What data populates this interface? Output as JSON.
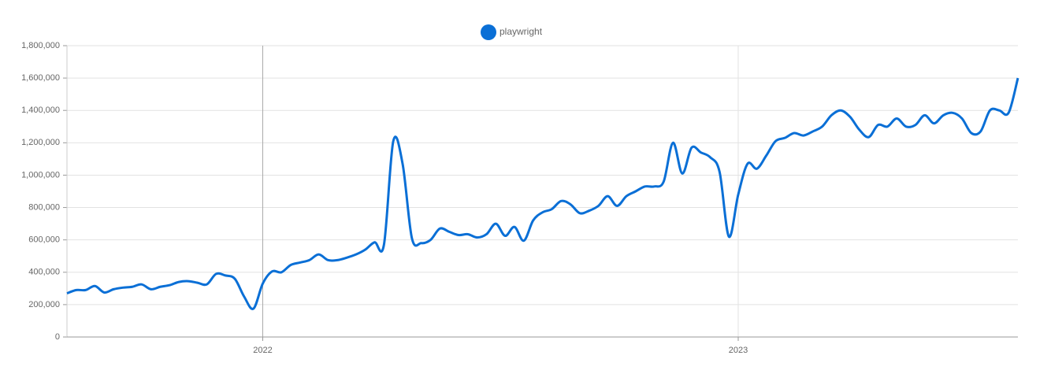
{
  "chart_data": {
    "type": "line",
    "categories": [
      null,
      null,
      null,
      null,
      null,
      null,
      null,
      null,
      null,
      null,
      null,
      null,
      null,
      null,
      null,
      null,
      null,
      null,
      null,
      null,
      null,
      "2022",
      null,
      null,
      null,
      null,
      null,
      null,
      null,
      null,
      null,
      null,
      null,
      null,
      null,
      null,
      null,
      null,
      null,
      null,
      null,
      null,
      null,
      null,
      null,
      null,
      null,
      null,
      null,
      null,
      null,
      null,
      null,
      null,
      null,
      null,
      null,
      null,
      null,
      null,
      null,
      null,
      null,
      null,
      null,
      null,
      null,
      null,
      null,
      null,
      null,
      null,
      "2023",
      null,
      null,
      null,
      null,
      null,
      null,
      null,
      null,
      null,
      null,
      null,
      null,
      null,
      null,
      null,
      null,
      null,
      null,
      null,
      null,
      null,
      null,
      null,
      null,
      null,
      null,
      null,
      null,
      null,
      null
    ],
    "series": [
      {
        "name": "playwright",
        "color": "#0a6fd6",
        "values": [
          270000,
          290000,
          290000,
          315000,
          275000,
          295000,
          305000,
          310000,
          325000,
          295000,
          310000,
          320000,
          340000,
          345000,
          335000,
          325000,
          390000,
          380000,
          360000,
          250000,
          175000,
          330000,
          405000,
          400000,
          445000,
          460000,
          475000,
          510000,
          475000,
          475000,
          490000,
          510000,
          540000,
          585000,
          570000,
          1210000,
          1070000,
          610000,
          580000,
          600000,
          670000,
          650000,
          630000,
          635000,
          615000,
          635000,
          700000,
          625000,
          680000,
          595000,
          720000,
          770000,
          790000,
          840000,
          820000,
          765000,
          780000,
          810000,
          870000,
          810000,
          870000,
          900000,
          930000,
          930000,
          960000,
          1200000,
          1010000,
          1170000,
          1140000,
          1110000,
          1020000,
          620000,
          880000,
          1070000,
          1040000,
          1120000,
          1210000,
          1230000,
          1260000,
          1245000,
          1270000,
          1300000,
          1370000,
          1400000,
          1360000,
          1280000,
          1235000,
          1310000,
          1300000,
          1350000,
          1300000,
          1310000,
          1370000,
          1320000,
          1370000,
          1385000,
          1350000,
          1260000,
          1270000,
          1400000,
          1400000,
          1385000,
          1600000
        ]
      }
    ],
    "ylim": [
      0,
      1800000
    ],
    "yticks": [
      0,
      {
        "value": 200000,
        "label": "200,000"
      },
      {
        "value": 400000,
        "label": "400,000"
      },
      {
        "value": 600000,
        "label": "600,000"
      },
      {
        "value": 800000,
        "label": "800,000"
      },
      {
        "value": 1000000,
        "label": "1,000,000"
      },
      {
        "value": 1200000,
        "label": "1,200,000"
      },
      {
        "value": 1400000,
        "label": "1,400,000"
      },
      {
        "value": 1600000,
        "label": "1,600,000"
      },
      {
        "value": 1800000,
        "label": "1,800,000"
      }
    ],
    "grid": true,
    "legend": "top"
  }
}
